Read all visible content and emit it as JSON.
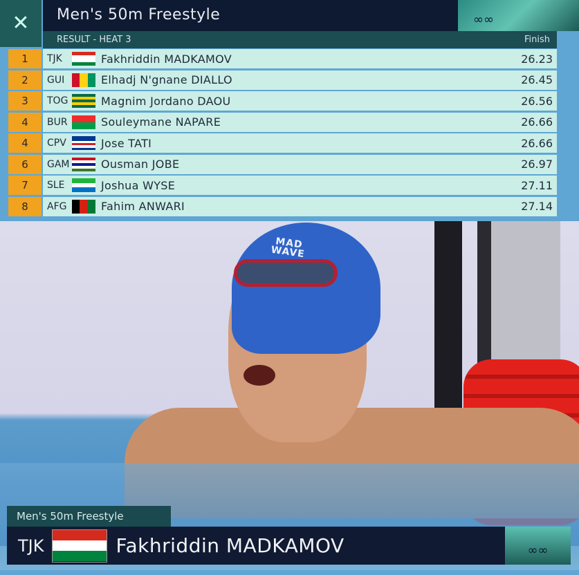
{
  "header": {
    "title": "Men's 50m Freestyle",
    "subtitle": "RESULT - HEAT 3",
    "finish_label": "Finish",
    "rings_icon": "olympic-rings-icon"
  },
  "colors": {
    "header_bg": "#0e1a32",
    "subheader_bg": "#1b4d53",
    "rank_bg": "#f1a21e",
    "row_bg": "#cbeee7"
  },
  "results": [
    {
      "rank": "1",
      "code": "TJK",
      "name": "Fakhriddin MADKAMOV",
      "time": "26.23",
      "flag": {
        "dir": "h",
        "colors": [
          "#d52b1e",
          "#ffffff",
          "#ffffff",
          "#00843d"
        ]
      }
    },
    {
      "rank": "2",
      "code": "GUI",
      "name": "Elhadj N'gnane DIALLO",
      "time": "26.45",
      "flag": {
        "dir": "v",
        "colors": [
          "#ce1126",
          "#fcd116",
          "#009460"
        ]
      }
    },
    {
      "rank": "3",
      "code": "TOG",
      "name": "Magnim Jordano DAOU",
      "time": "26.56",
      "flag": {
        "dir": "h",
        "colors": [
          "#006a4e",
          "#ffce00",
          "#006a4e",
          "#ffce00",
          "#006a4e"
        ]
      }
    },
    {
      "rank": "4",
      "code": "BUR",
      "name": "Souleymane NAPARE",
      "time": "26.66",
      "flag": {
        "dir": "h",
        "colors": [
          "#ef2b2d",
          "#009e49"
        ]
      }
    },
    {
      "rank": "4",
      "code": "CPV",
      "name": "Jose TATI",
      "time": "26.66",
      "flag": {
        "dir": "h",
        "colors": [
          "#003893",
          "#003893",
          "#ffffff",
          "#cf2027",
          "#ffffff",
          "#003893"
        ]
      }
    },
    {
      "rank": "6",
      "code": "GAM",
      "name": "Ousman JOBE",
      "time": "26.97",
      "flag": {
        "dir": "h",
        "colors": [
          "#ce1126",
          "#ffffff",
          "#0c1c8c",
          "#ffffff",
          "#3a7728"
        ]
      }
    },
    {
      "rank": "7",
      "code": "SLE",
      "name": "Joshua WYSE",
      "time": "27.11",
      "flag": {
        "dir": "h",
        "colors": [
          "#1eb53a",
          "#ffffff",
          "#0072c6"
        ]
      }
    },
    {
      "rank": "8",
      "code": "AFG",
      "name": "Fahim ANWARI",
      "time": "27.14",
      "flag": {
        "dir": "v",
        "colors": [
          "#000000",
          "#d32011",
          "#007a36"
        ]
      }
    }
  ],
  "lower_third": {
    "event": "Men's 50m Freestyle",
    "code": "TJK",
    "name": "Fakhriddin MADKAMOV",
    "flag": {
      "dir": "h",
      "colors": [
        "#d52b1e",
        "#ffffff",
        "#00843d"
      ]
    },
    "cap_text": "MAD WAVE"
  }
}
